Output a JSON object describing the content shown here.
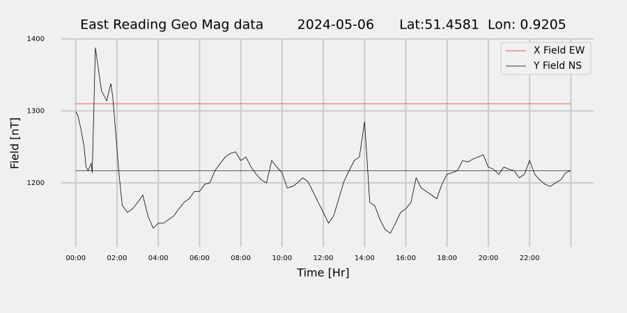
{
  "chart_data": {
    "type": "line",
    "title": "East Reading Geo Mag data        2024-05-06      Lat:51.4581  Lon: 0.9205",
    "x_label": "Time  [Hr]",
    "y_label": "Field  [nT]",
    "xlim": [
      -0.7,
      25.1
    ],
    "ylim": [
      1111,
      1400
    ],
    "xticks": [
      {
        "value": 0,
        "label": "00:00"
      },
      {
        "value": 2,
        "label": "02:00"
      },
      {
        "value": 4,
        "label": "04:00"
      },
      {
        "value": 6,
        "label": "06:00"
      },
      {
        "value": 8,
        "label": "08:00"
      },
      {
        "value": 10,
        "label": "10:00"
      },
      {
        "value": 12,
        "label": "12:00"
      },
      {
        "value": 14,
        "label": "14:00"
      },
      {
        "value": 16,
        "label": "16:00"
      },
      {
        "value": 18,
        "label": "18:00"
      },
      {
        "value": 20,
        "label": "20:00"
      },
      {
        "value": 22,
        "label": "22:00"
      },
      {
        "value": 24,
        "label": null
      }
    ],
    "yticks": [
      1200,
      1300,
      1400
    ],
    "grid": true,
    "legend": "upper right",
    "reference_lines": [
      {
        "value": 1217,
        "color": "#000000"
      }
    ],
    "series": [
      {
        "name": "X Field EW",
        "color": "#d62728",
        "x": [
          0,
          24
        ],
        "values": [
          1310,
          1310
        ]
      },
      {
        "name": "Y Field NS",
        "color": "#000000",
        "x": [
          0,
          0.1,
          0.25,
          0.4,
          0.5,
          0.6,
          0.75,
          0.8,
          0.95,
          1.25,
          1.5,
          1.7,
          1.8,
          2.0,
          2.1,
          2.25,
          2.5,
          2.75,
          3.0,
          3.25,
          3.5,
          3.75,
          4.0,
          4.25,
          4.5,
          4.75,
          5.0,
          5.25,
          5.5,
          5.75,
          6.0,
          6.25,
          6.5,
          6.75,
          7.0,
          7.25,
          7.5,
          7.75,
          8.0,
          8.25,
          8.5,
          8.75,
          9.0,
          9.25,
          9.5,
          9.75,
          10.0,
          10.25,
          10.5,
          10.75,
          11.0,
          11.25,
          11.5,
          11.75,
          12.0,
          12.25,
          12.5,
          12.75,
          13.0,
          13.25,
          13.5,
          13.75,
          14.0,
          14.1,
          14.25,
          14.5,
          14.75,
          15.0,
          15.25,
          15.5,
          15.75,
          16.0,
          16.25,
          16.5,
          16.75,
          17.0,
          17.25,
          17.5,
          17.75,
          18.0,
          18.25,
          18.5,
          18.75,
          19.0,
          19.25,
          19.5,
          19.75,
          20.0,
          20.25,
          20.5,
          20.75,
          21.0,
          21.25,
          21.5,
          21.75,
          22.0,
          22.25,
          22.5,
          22.75,
          23.0,
          23.25,
          23.5,
          23.75,
          24.0
        ],
        "values": [
          1299,
          1294,
          1275,
          1251,
          1222,
          1217,
          1227,
          1214,
          1388,
          1328,
          1314,
          1338,
          1318,
          1246,
          1212,
          1169,
          1159,
          1164,
          1173,
          1183,
          1154,
          1137,
          1144,
          1144,
          1149,
          1154,
          1164,
          1173,
          1178,
          1188,
          1188,
          1198,
          1200,
          1217,
          1227,
          1236,
          1241,
          1243,
          1231,
          1236,
          1222,
          1212,
          1204,
          1200,
          1231,
          1222,
          1214,
          1193,
          1195,
          1200,
          1207,
          1202,
          1188,
          1173,
          1159,
          1144,
          1154,
          1178,
          1202,
          1217,
          1231,
          1236,
          1285,
          1241,
          1173,
          1168,
          1149,
          1135,
          1130,
          1144,
          1159,
          1164,
          1173,
          1207,
          1193,
          1188,
          1183,
          1178,
          1198,
          1212,
          1214,
          1217,
          1231,
          1229,
          1233,
          1236,
          1239,
          1222,
          1219,
          1212,
          1222,
          1219,
          1217,
          1207,
          1212,
          1231,
          1212,
          1204,
          1198,
          1195,
          1200,
          1204,
          1214,
          1217
        ]
      }
    ]
  }
}
